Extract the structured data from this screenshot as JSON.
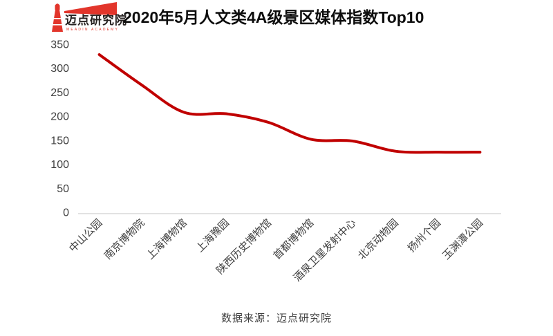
{
  "logo": {
    "text": "迈点研究院",
    "subtext": "MEADIN ACADEMY",
    "color": "#e2352b"
  },
  "title": "2020年5月人文类4A级景区媒体指数Top10",
  "source": "数据来源：迈点研究院",
  "chart_data": {
    "type": "line",
    "title": "2020年5月人文类4A级景区媒体指数Top10",
    "categories": [
      "中山公园",
      "南京博物院",
      "上海博物馆",
      "上海豫园",
      "陕西历史博物馆",
      "首都博物馆",
      "酒泉卫星发射中心",
      "北京动物园",
      "扬州个园",
      "玉渊潭公园"
    ],
    "values": [
      328,
      265,
      208,
      205,
      187,
      152,
      148,
      127,
      125,
      125
    ],
    "xlabel": "",
    "ylabel": "",
    "ylim": [
      0,
      350
    ],
    "ytick_step": 50,
    "grid": false,
    "legend": false,
    "smooth": true,
    "line_color": "#c00000",
    "axis_color": "#d9d9d9",
    "tick_label_color": "#404040"
  }
}
